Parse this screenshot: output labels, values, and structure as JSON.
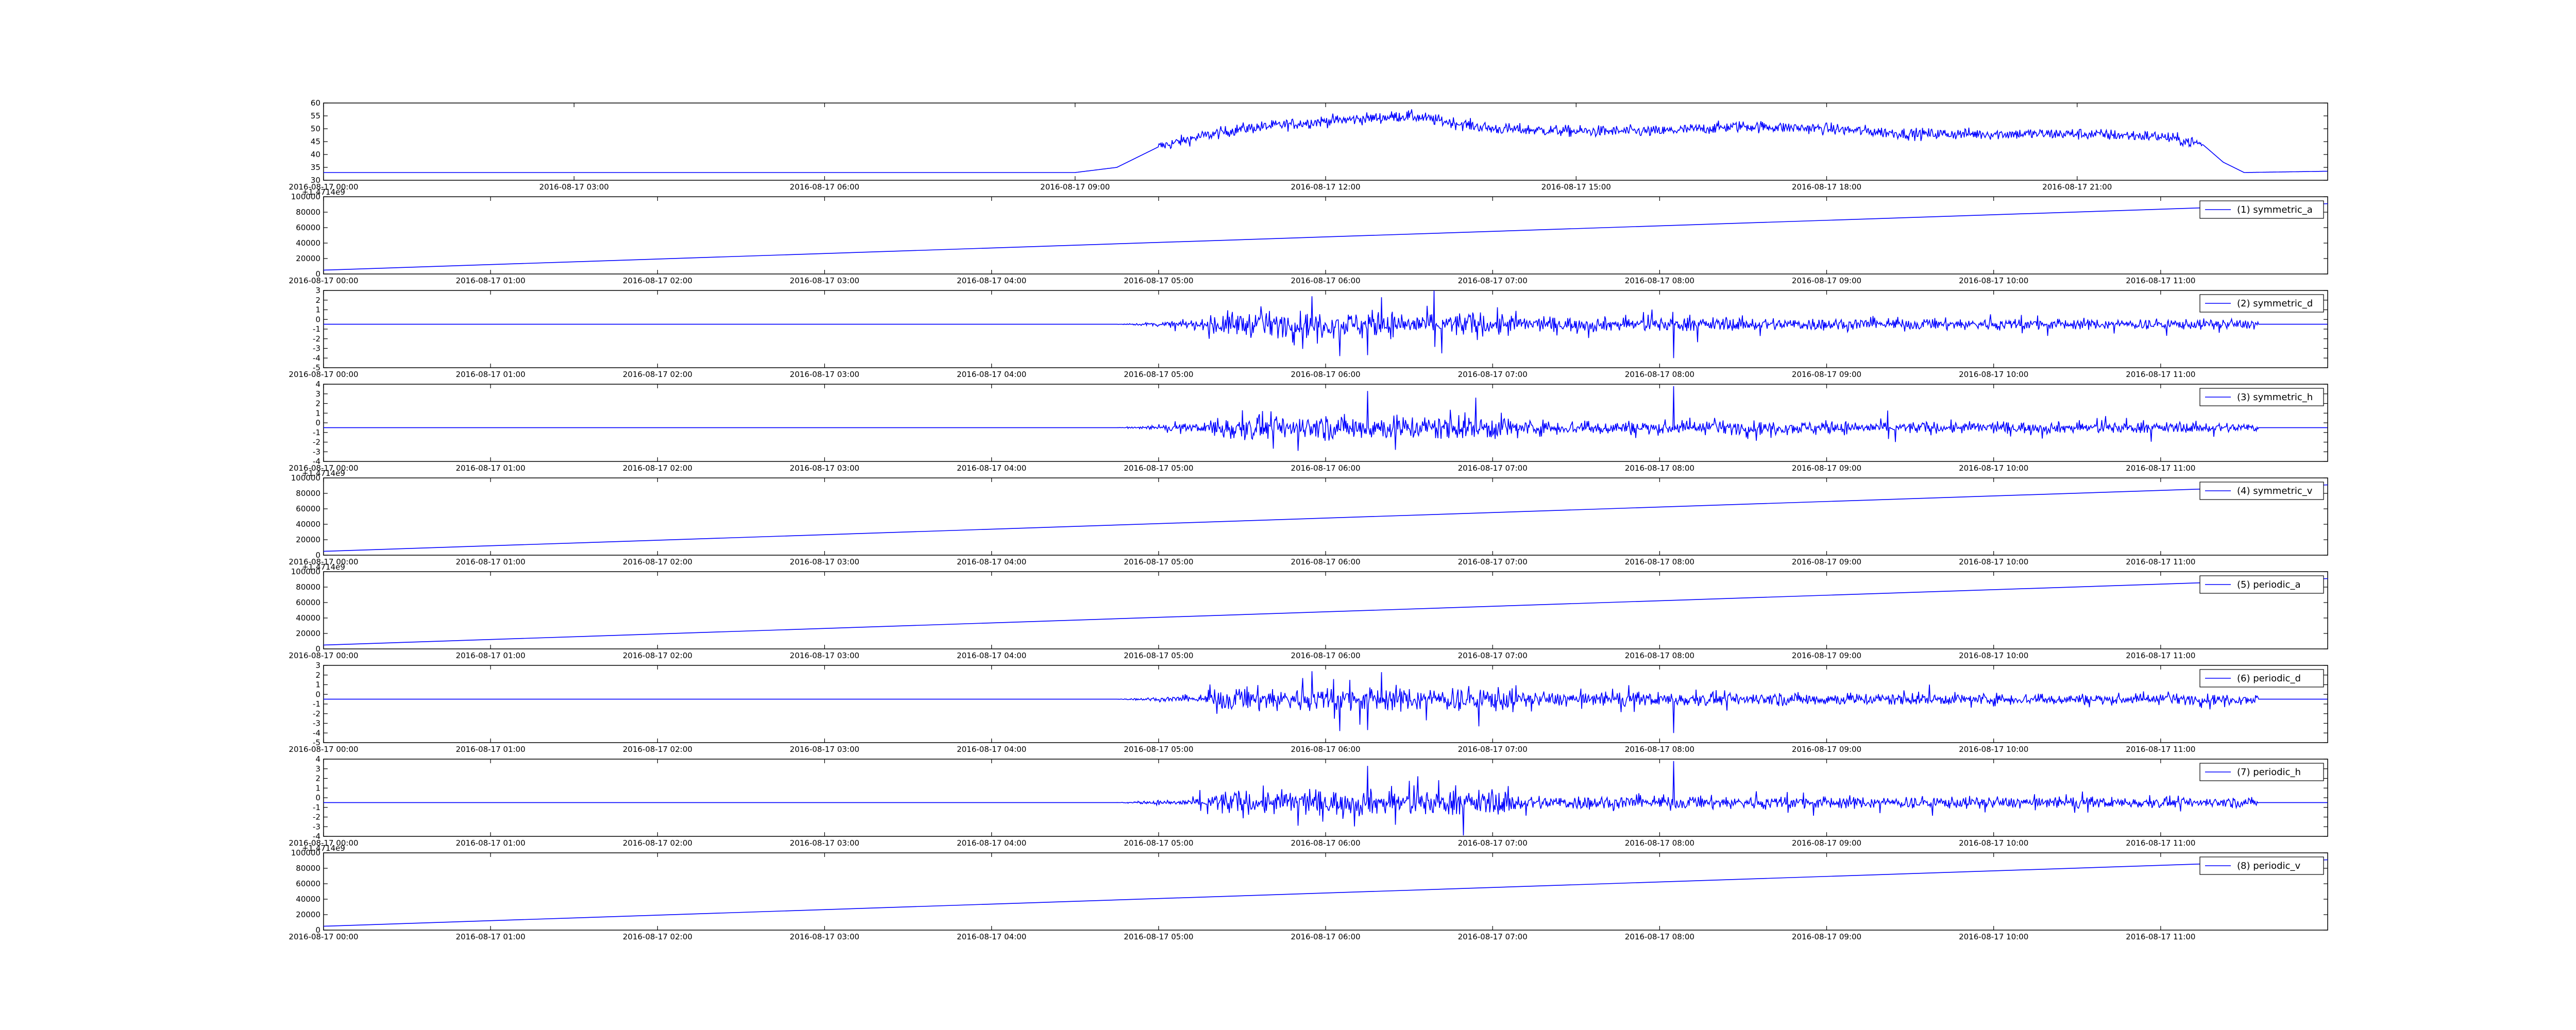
{
  "figure": {
    "background": "#ffffff",
    "line_color": "#0000ff"
  },
  "chart_data": [
    {
      "type": "line",
      "title": "",
      "xlabel": "",
      "ylabel": "",
      "grid": false,
      "x_kind": "time",
      "xlim": [
        "2016-08-17 00:00",
        "2016-08-18 00:00"
      ],
      "ylim": [
        30,
        60
      ],
      "yticks": [
        "30",
        "35",
        "40",
        "45",
        "50",
        "55",
        "60"
      ],
      "xticks": [
        "2016-08-17 00:00",
        "2016-08-17 03:00",
        "2016-08-17 06:00",
        "2016-08-17 09:00",
        "2016-08-17 12:00",
        "2016-08-17 15:00",
        "2016-08-17 18:00",
        "2016-08-17 21:00"
      ],
      "series": [
        {
          "signal": "temperature-like",
          "x": [
            "2016-08-17 00:00",
            "2016-08-17 09:00",
            "2016-08-17 09:30",
            "2016-08-17 10:00",
            "2016-08-17 10:30",
            "2016-08-17 11:00",
            "2016-08-17 12:00",
            "2016-08-17 13:00",
            "2016-08-17 14:00",
            "2016-08-17 15:00",
            "2016-08-17 16:00",
            "2016-08-17 17:00",
            "2016-08-17 18:00",
            "2016-08-17 19:00",
            "2016-08-17 20:00",
            "2016-08-17 21:00",
            "2016-08-17 22:00",
            "2016-08-17 22:30",
            "2016-08-17 22:45",
            "2016-08-17 23:00",
            "2016-08-18 00:00"
          ],
          "values": [
            33,
            33,
            35,
            43,
            47,
            50,
            53,
            55,
            50,
            49,
            49,
            51,
            50,
            48,
            48,
            48,
            47,
            44,
            37,
            33,
            33.5
          ],
          "noise": 3.5,
          "noise_range": [
            "2016-08-17 10:00",
            "2016-08-17 22:30"
          ]
        }
      ]
    },
    {
      "type": "line",
      "grid": false,
      "x_kind": "time",
      "xlim": [
        "2016-08-17 00:00",
        "2016-08-17 12:00"
      ],
      "ylim": [
        0,
        100000
      ],
      "yticks": [
        "0",
        "20000",
        "40000",
        "60000",
        "80000",
        "100000"
      ],
      "offset_text": "+1.4714e9",
      "xticks": [
        "2016-08-17 00:00",
        "2016-08-17 01:00",
        "2016-08-17 02:00",
        "2016-08-17 03:00",
        "2016-08-17 04:00",
        "2016-08-17 05:00",
        "2016-08-17 06:00",
        "2016-08-17 07:00",
        "2016-08-17 08:00",
        "2016-08-17 09:00",
        "2016-08-17 10:00",
        "2016-08-17 11:00"
      ],
      "legend": {
        "position": "top-right"
      },
      "series": [
        {
          "name": "(1) symmetric_a",
          "x": [
            "2016-08-17 00:00",
            "2016-08-17 12:00"
          ],
          "values": [
            5000,
            91000
          ]
        }
      ]
    },
    {
      "type": "line",
      "grid": false,
      "x_kind": "time",
      "xlim": [
        "2016-08-17 00:00",
        "2016-08-17 12:00"
      ],
      "ylim": [
        -5,
        3
      ],
      "yticks": [
        "-5",
        "-4",
        "-3",
        "-2",
        "-1",
        "0",
        "1",
        "2",
        "3"
      ],
      "xticks": [
        "2016-08-17 00:00",
        "2016-08-17 01:00",
        "2016-08-17 02:00",
        "2016-08-17 03:00",
        "2016-08-17 04:00",
        "2016-08-17 05:00",
        "2016-08-17 06:00",
        "2016-08-17 07:00",
        "2016-08-17 08:00",
        "2016-08-17 09:00",
        "2016-08-17 10:00",
        "2016-08-17 11:00"
      ],
      "legend": {
        "position": "top-right"
      },
      "series": [
        {
          "name": "(2) symmetric_d",
          "baseline": -0.5,
          "noise_range": [
            "2016-08-17 04:45",
            "2016-08-17 11:35"
          ],
          "noise": 1.2,
          "spikes": [
            {
              "x": "2016-08-17 06:05",
              "value": -3.8
            },
            {
              "x": "2016-08-17 06:15",
              "value": -3.7
            },
            {
              "x": "2016-08-17 08:05",
              "value": -4.0
            },
            {
              "x": "2016-08-17 05:55",
              "value": 2.4
            },
            {
              "x": "2016-08-17 06:20",
              "value": 2.3
            }
          ]
        }
      ]
    },
    {
      "type": "line",
      "grid": false,
      "x_kind": "time",
      "xlim": [
        "2016-08-17 00:00",
        "2016-08-17 12:00"
      ],
      "ylim": [
        -4,
        4
      ],
      "yticks": [
        "-4",
        "-3",
        "-2",
        "-1",
        "0",
        "1",
        "2",
        "3",
        "4"
      ],
      "xticks": [
        "2016-08-17 00:00",
        "2016-08-17 01:00",
        "2016-08-17 02:00",
        "2016-08-17 03:00",
        "2016-08-17 04:00",
        "2016-08-17 05:00",
        "2016-08-17 06:00",
        "2016-08-17 07:00",
        "2016-08-17 08:00",
        "2016-08-17 09:00",
        "2016-08-17 10:00",
        "2016-08-17 11:00"
      ],
      "legend": {
        "position": "top-right"
      },
      "series": [
        {
          "name": "(3) symmetric_h",
          "baseline": -0.5,
          "noise_range": [
            "2016-08-17 04:45",
            "2016-08-17 11:35"
          ],
          "noise": 1.2,
          "spikes": [
            {
              "x": "2016-08-17 08:05",
              "value": 3.8
            },
            {
              "x": "2016-08-17 06:15",
              "value": 3.3
            },
            {
              "x": "2016-08-17 05:50",
              "value": -2.9
            },
            {
              "x": "2016-08-17 06:25",
              "value": -2.8
            }
          ]
        }
      ]
    },
    {
      "type": "line",
      "grid": false,
      "x_kind": "time",
      "xlim": [
        "2016-08-17 00:00",
        "2016-08-17 12:00"
      ],
      "ylim": [
        0,
        100000
      ],
      "yticks": [
        "0",
        "20000",
        "40000",
        "60000",
        "80000",
        "100000"
      ],
      "offset_text": "+1.4714e9",
      "xticks": [
        "2016-08-17 00:00",
        "2016-08-17 01:00",
        "2016-08-17 02:00",
        "2016-08-17 03:00",
        "2016-08-17 04:00",
        "2016-08-17 05:00",
        "2016-08-17 06:00",
        "2016-08-17 07:00",
        "2016-08-17 08:00",
        "2016-08-17 09:00",
        "2016-08-17 10:00",
        "2016-08-17 11:00"
      ],
      "legend": {
        "position": "top-right"
      },
      "series": [
        {
          "name": "(4) symmetric_v",
          "x": [
            "2016-08-17 00:00",
            "2016-08-17 12:00"
          ],
          "values": [
            5000,
            91000
          ]
        }
      ]
    },
    {
      "type": "line",
      "grid": false,
      "x_kind": "time",
      "xlim": [
        "2016-08-17 00:00",
        "2016-08-17 12:00"
      ],
      "ylim": [
        0,
        100000
      ],
      "yticks": [
        "0",
        "20000",
        "40000",
        "60000",
        "80000",
        "100000"
      ],
      "offset_text": "+1.4714e9",
      "xticks": [
        "2016-08-17 00:00",
        "2016-08-17 01:00",
        "2016-08-17 02:00",
        "2016-08-17 03:00",
        "2016-08-17 04:00",
        "2016-08-17 05:00",
        "2016-08-17 06:00",
        "2016-08-17 07:00",
        "2016-08-17 08:00",
        "2016-08-17 09:00",
        "2016-08-17 10:00",
        "2016-08-17 11:00"
      ],
      "legend": {
        "position": "top-right"
      },
      "series": [
        {
          "name": "(5) periodic_a",
          "x": [
            "2016-08-17 00:00",
            "2016-08-17 12:00"
          ],
          "values": [
            5000,
            91000
          ]
        }
      ]
    },
    {
      "type": "line",
      "grid": false,
      "x_kind": "time",
      "xlim": [
        "2016-08-17 00:00",
        "2016-08-17 12:00"
      ],
      "ylim": [
        -5,
        3
      ],
      "yticks": [
        "-5",
        "-4",
        "-3",
        "-2",
        "-1",
        "0",
        "1",
        "2",
        "3"
      ],
      "xticks": [
        "2016-08-17 00:00",
        "2016-08-17 01:00",
        "2016-08-17 02:00",
        "2016-08-17 03:00",
        "2016-08-17 04:00",
        "2016-08-17 05:00",
        "2016-08-17 06:00",
        "2016-08-17 07:00",
        "2016-08-17 08:00",
        "2016-08-17 09:00",
        "2016-08-17 10:00",
        "2016-08-17 11:00"
      ],
      "legend": {
        "position": "top-right"
      },
      "series": [
        {
          "name": "(6) periodic_d",
          "baseline": -0.5,
          "noise_range": [
            "2016-08-17 04:45",
            "2016-08-17 11:35"
          ],
          "noise": 1.2,
          "spikes": [
            {
              "x": "2016-08-17 06:05",
              "value": -3.8
            },
            {
              "x": "2016-08-17 06:15",
              "value": -3.7
            },
            {
              "x": "2016-08-17 08:05",
              "value": -4.0
            },
            {
              "x": "2016-08-17 05:55",
              "value": 2.4
            },
            {
              "x": "2016-08-17 06:20",
              "value": 2.3
            }
          ]
        }
      ]
    },
    {
      "type": "line",
      "grid": false,
      "x_kind": "time",
      "xlim": [
        "2016-08-17 00:00",
        "2016-08-17 12:00"
      ],
      "ylim": [
        -4,
        4
      ],
      "yticks": [
        "-4",
        "-3",
        "-2",
        "-1",
        "0",
        "1",
        "2",
        "3",
        "4"
      ],
      "xticks": [
        "2016-08-17 00:00",
        "2016-08-17 01:00",
        "2016-08-17 02:00",
        "2016-08-17 03:00",
        "2016-08-17 04:00",
        "2016-08-17 05:00",
        "2016-08-17 06:00",
        "2016-08-17 07:00",
        "2016-08-17 08:00",
        "2016-08-17 09:00",
        "2016-08-17 10:00",
        "2016-08-17 11:00"
      ],
      "legend": {
        "position": "top-right"
      },
      "series": [
        {
          "name": "(7) periodic_h",
          "baseline": -0.5,
          "noise_range": [
            "2016-08-17 04:45",
            "2016-08-17 11:35"
          ],
          "noise": 1.2,
          "spikes": [
            {
              "x": "2016-08-17 08:05",
              "value": 3.8
            },
            {
              "x": "2016-08-17 06:15",
              "value": 3.3
            },
            {
              "x": "2016-08-17 05:50",
              "value": -2.9
            },
            {
              "x": "2016-08-17 06:25",
              "value": -2.8
            }
          ]
        }
      ]
    },
    {
      "type": "line",
      "grid": false,
      "x_kind": "time",
      "xlim": [
        "2016-08-17 00:00",
        "2016-08-17 12:00"
      ],
      "ylim": [
        0,
        100000
      ],
      "yticks": [
        "0",
        "20000",
        "40000",
        "60000",
        "80000",
        "100000"
      ],
      "offset_text": "+1.4714e9",
      "xticks": [
        "2016-08-17 00:00",
        "2016-08-17 01:00",
        "2016-08-17 02:00",
        "2016-08-17 03:00",
        "2016-08-17 04:00",
        "2016-08-17 05:00",
        "2016-08-17 06:00",
        "2016-08-17 07:00",
        "2016-08-17 08:00",
        "2016-08-17 09:00",
        "2016-08-17 10:00",
        "2016-08-17 11:00"
      ],
      "legend": {
        "position": "top-right"
      },
      "series": [
        {
          "name": "(8) periodic_v",
          "x": [
            "2016-08-17 00:00",
            "2016-08-17 12:00"
          ],
          "values": [
            5000,
            91000
          ]
        }
      ]
    }
  ]
}
